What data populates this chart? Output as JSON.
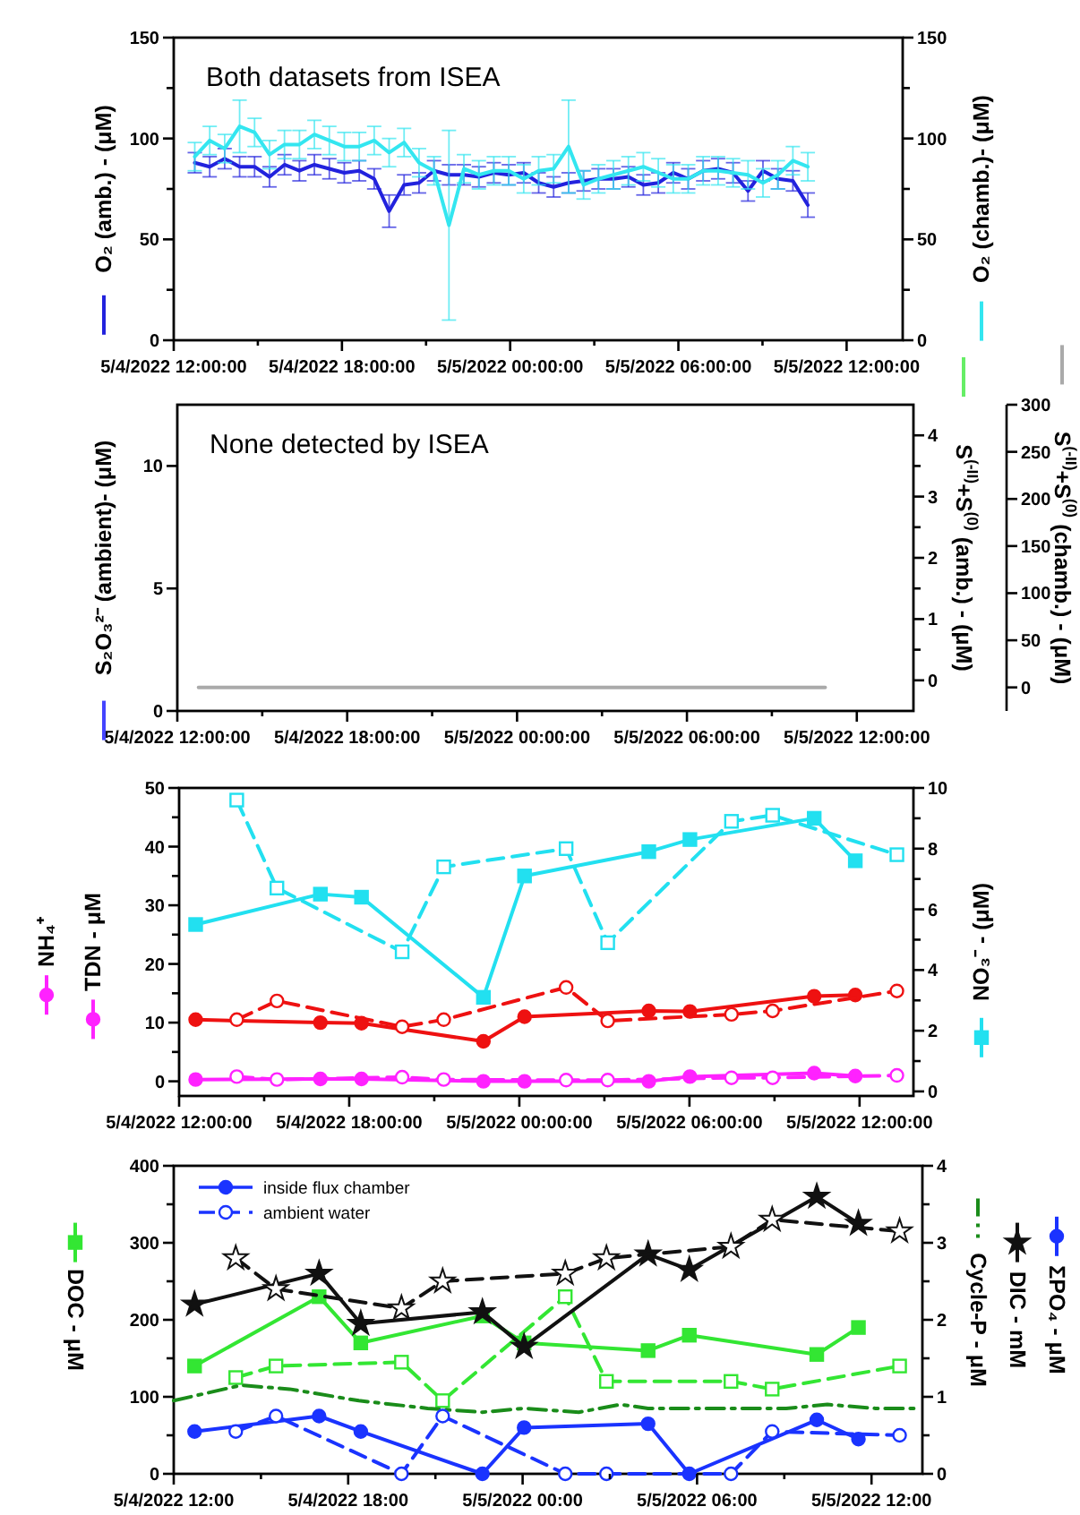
{
  "chart_data": [
    {
      "type": "line",
      "ylabel": "O₂ (amb.) - (μM)",
      "y2label": "O₂ (chamb.)- (μM)",
      "annotations": [
        "Both datasets from ISEA"
      ],
      "xlim": [
        "2022-05-04T12:00",
        "2022-05-05T14:00"
      ],
      "xticks": [
        {
          "value": "2022-05-04T12:00",
          "label": "5/4/2022 12:00:00"
        },
        {
          "value": "2022-05-04T15:00",
          "label": null
        },
        {
          "value": "2022-05-04T18:00",
          "label": "5/4/2022 18:00:00"
        },
        {
          "value": "2022-05-04T21:00",
          "label": null
        },
        {
          "value": "2022-05-05T00:00",
          "label": "5/5/2022 00:00:00"
        },
        {
          "value": "2022-05-05T03:00",
          "label": null
        },
        {
          "value": "2022-05-05T06:00",
          "label": "5/5/2022 06:00:00"
        },
        {
          "value": "2022-05-05T09:00",
          "label": null
        },
        {
          "value": "2022-05-05T12:00",
          "label": "5/5/2022 12:00:00"
        }
      ],
      "ylim": [
        0,
        150
      ],
      "yticks": [
        0,
        {
          "value": 25,
          "label": null
        },
        50,
        {
          "value": 75,
          "label": null
        },
        100,
        {
          "value": 125,
          "label": null
        },
        150
      ],
      "y2lim": [
        0,
        150
      ],
      "y2ticks": [
        0,
        {
          "value": 25,
          "label": null
        },
        50,
        {
          "value": 75,
          "label": null
        },
        100,
        {
          "value": 125,
          "label": null
        },
        150
      ],
      "x": [
        "2022-05-04T12:45",
        "2022-05-04T13:17",
        "2022-05-04T13:49",
        "2022-05-04T14:21",
        "2022-05-04T14:53",
        "2022-05-04T15:25",
        "2022-05-04T15:57",
        "2022-05-04T16:29",
        "2022-05-04T17:01",
        "2022-05-04T17:33",
        "2022-05-04T18:05",
        "2022-05-04T18:37",
        "2022-05-04T19:09",
        "2022-05-04T19:41",
        "2022-05-04T20:13",
        "2022-05-04T20:45",
        "2022-05-04T21:17",
        "2022-05-04T21:49",
        "2022-05-04T22:21",
        "2022-05-04T22:53",
        "2022-05-04T23:25",
        "2022-05-04T23:57",
        "2022-05-05T00:29",
        "2022-05-05T01:01",
        "2022-05-05T01:33",
        "2022-05-05T02:05",
        "2022-05-05T02:37",
        "2022-05-05T03:09",
        "2022-05-05T03:41",
        "2022-05-05T04:13",
        "2022-05-05T04:45",
        "2022-05-05T05:17",
        "2022-05-05T05:49",
        "2022-05-05T06:21",
        "2022-05-05T06:53",
        "2022-05-05T07:25",
        "2022-05-05T07:57",
        "2022-05-05T08:29",
        "2022-05-05T09:01",
        "2022-05-05T09:33",
        "2022-05-05T10:05",
        "2022-05-05T10:37"
      ],
      "series": [
        {
          "color": "#2222dd",
          "values": [
            88,
            86,
            90,
            86,
            86,
            81,
            87,
            84,
            87,
            85,
            83,
            84,
            80,
            64,
            77,
            78,
            84,
            82,
            82,
            81,
            83,
            82,
            83,
            78,
            76,
            78,
            79,
            80,
            80,
            81,
            77,
            78,
            83,
            80,
            84,
            85,
            83,
            74,
            84,
            80,
            79,
            67
          ],
          "errors": [
            5,
            5,
            5,
            5,
            5,
            5,
            5,
            5,
            5,
            5,
            5,
            5,
            5,
            8,
            5,
            5,
            5,
            5,
            5,
            5,
            5,
            5,
            5,
            5,
            5,
            5,
            5,
            5,
            5,
            5,
            5,
            5,
            5,
            5,
            5,
            5,
            5,
            5,
            5,
            5,
            5,
            6
          ]
        },
        {
          "color": "#33e6f0",
          "axis": "y2",
          "values": [
            91,
            99,
            95,
            106,
            103,
            92,
            97,
            97,
            102,
            99,
            96,
            96,
            99,
            93,
            98,
            88,
            84,
            57,
            85,
            82,
            84,
            84,
            80,
            84,
            85,
            96,
            77,
            80,
            82,
            84,
            86,
            83,
            80,
            80,
            84,
            84,
            83,
            82,
            78,
            82,
            89,
            86
          ],
          "errors": [
            7,
            7,
            7,
            13,
            7,
            7,
            7,
            7,
            7,
            7,
            7,
            7,
            7,
            7,
            7,
            7,
            7,
            47,
            7,
            7,
            7,
            7,
            7,
            7,
            7,
            23,
            7,
            7,
            7,
            7,
            7,
            7,
            7,
            7,
            7,
            7,
            7,
            7,
            7,
            7,
            7,
            7
          ]
        }
      ]
    },
    {
      "type": "line",
      "ylabel": "S₂O₃²⁻ (ambient)- (μM)",
      "y2label": "S$^{(-II)}$+S$^{(0)}$ (amb.) - (μM)",
      "y3label": "S$^{(-II)}$+S$^{(0)}$ (chamb.) - (μM)",
      "annotations": [
        "None detected by ISEA"
      ],
      "xlim": [
        "2022-05-04T12:00",
        "2022-05-05T14:00"
      ],
      "xticks": [
        {
          "value": "2022-05-04T12:00",
          "label": "5/4/2022 12:00:00"
        },
        {
          "value": "2022-05-04T15:00",
          "label": null
        },
        {
          "value": "2022-05-04T18:00",
          "label": "5/4/2022 18:00:00"
        },
        {
          "value": "2022-05-04T21:00",
          "label": null
        },
        {
          "value": "2022-05-05T00:00",
          "label": "5/5/2022 00:00:00"
        },
        {
          "value": "2022-05-05T03:00",
          "label": null
        },
        {
          "value": "2022-05-05T06:00",
          "label": "5/5/2022 06:00:00"
        },
        {
          "value": "2022-05-05T09:00",
          "label": null
        },
        {
          "value": "2022-05-05T12:00",
          "label": "5/5/2022 12:00:00"
        }
      ],
      "ylim": [
        0,
        12.5
      ],
      "yticks": [
        0,
        5,
        10
      ],
      "y2lim": [
        -0.5,
        4.5
      ],
      "y2ticks": [
        0,
        {
          "value": 0.5,
          "label": null
        },
        1,
        {
          "value": 1.5,
          "label": null
        },
        2,
        {
          "value": 2.5,
          "label": null
        },
        3,
        {
          "value": 3.5,
          "label": null
        },
        4
      ],
      "y3lim": [
        -25,
        300
      ],
      "y3ticks": [
        0,
        50,
        100,
        150,
        200,
        250,
        300
      ],
      "x": [
        "2022-05-04T12:45",
        "2022-05-05T10:53"
      ],
      "series": [
        {
          "color": "#4444ff",
          "values": [
            null,
            null
          ]
        },
        {
          "color": "#66ee66",
          "axis": "y2",
          "values": [
            null,
            null
          ]
        },
        {
          "color": "#aaaaaa",
          "axis": "y3",
          "values": [
            0,
            0
          ]
        }
      ]
    },
    {
      "type": "line",
      "ylabel": "TDN - μM",
      "y2label": "NO₃⁻ - (μM)",
      "annotations": [
        "NH₄⁺"
      ],
      "xlim": [
        "2022-05-04T12:00",
        "2022-05-05T13:54"
      ],
      "xticks": [
        {
          "value": "2022-05-04T12:00",
          "label": "5/4/2022 12:00:00"
        },
        {
          "value": "2022-05-04T15:00",
          "label": null
        },
        {
          "value": "2022-05-04T18:00",
          "label": "5/4/2022 18:00:00"
        },
        {
          "value": "2022-05-04T21:00",
          "label": null
        },
        {
          "value": "2022-05-05T00:00",
          "label": "5/5/2022 00:00:00"
        },
        {
          "value": "2022-05-05T03:00",
          "label": null
        },
        {
          "value": "2022-05-05T06:00",
          "label": "5/5/2022 06:00:00"
        },
        {
          "value": "2022-05-05T09:00",
          "label": null
        },
        {
          "value": "2022-05-05T12:00",
          "label": "5/5/2022 12:00:00"
        }
      ],
      "ylim": [
        -2.5,
        50
      ],
      "yticks": [
        0,
        {
          "value": 5,
          "label": null
        },
        10,
        {
          "value": 15,
          "label": null
        },
        20,
        {
          "value": 25,
          "label": null
        },
        30,
        {
          "value": 35,
          "label": null
        },
        40,
        {
          "value": 45,
          "label": null
        },
        50
      ],
      "y2lim": [
        -0.15,
        10
      ],
      "y2ticks": [
        0,
        {
          "value": 1,
          "label": null
        },
        2,
        {
          "value": 3,
          "label": null
        },
        4,
        {
          "value": 5,
          "label": null
        },
        6,
        {
          "value": 7,
          "label": null
        },
        8,
        {
          "value": 9,
          "label": null
        },
        10
      ],
      "series": [
        {
          "color": "#ff22ff",
          "marker": "circle",
          "line_style": "solid",
          "x": [
            "2022-05-04T12:35",
            "2022-05-04T16:59",
            "2022-05-04T18:26",
            "2022-05-04T22:44",
            "2022-05-05T00:11",
            "2022-05-05T04:34",
            "2022-05-05T06:01",
            "2022-05-05T10:24",
            "2022-05-05T11:51"
          ],
          "values": [
            0.3,
            0.4,
            0.4,
            0,
            0,
            0,
            0.8,
            1.4,
            0.9
          ]
        },
        {
          "color": "#ff22ff",
          "marker": "circle",
          "line_style": "dashed",
          "x": [
            "2022-05-04T14:02",
            "2022-05-04T15:27",
            "2022-05-04T19:52",
            "2022-05-04T21:20",
            "2022-05-05T01:39",
            "2022-05-05T03:07",
            "2022-05-05T07:29",
            "2022-05-05T08:56",
            "2022-05-05T13:19"
          ],
          "values": [
            0.8,
            0.3,
            0.7,
            0.3,
            0.2,
            0.2,
            0.6,
            0.6,
            1.0
          ]
        },
        {
          "color": "#ee1111",
          "marker": "circle",
          "line_style": "solid",
          "x": [
            "2022-05-04T12:35",
            "2022-05-04T16:59",
            "2022-05-04T18:26",
            "2022-05-04T22:44",
            "2022-05-05T00:11",
            "2022-05-05T04:34",
            "2022-05-05T06:01",
            "2022-05-05T10:24",
            "2022-05-05T11:51"
          ],
          "values": [
            10.5,
            10.0,
            9.9,
            6.8,
            11.0,
            12.0,
            11.9,
            14.5,
            14.7
          ]
        },
        {
          "color": "#ee1111",
          "marker": "circle",
          "line_style": "dashed",
          "x": [
            "2022-05-04T14:02",
            "2022-05-04T15:27",
            "2022-05-04T19:52",
            "2022-05-04T21:20",
            "2022-05-05T01:39",
            "2022-05-05T03:07",
            "2022-05-05T07:29",
            "2022-05-05T08:56",
            "2022-05-05T13:19"
          ],
          "values": [
            10.5,
            13.7,
            9.3,
            10.5,
            16.0,
            10.3,
            11.4,
            12.0,
            15.4
          ]
        },
        {
          "color": "#22e0f0",
          "axis": "y2",
          "marker": "square",
          "line_style": "solid",
          "x": [
            "2022-05-04T12:35",
            "2022-05-04T16:59",
            "2022-05-04T18:26",
            "2022-05-04T22:44",
            "2022-05-05T00:11",
            "2022-05-05T04:34",
            "2022-05-05T06:01",
            "2022-05-05T10:24",
            "2022-05-05T11:51"
          ],
          "values": [
            5.5,
            6.5,
            6.4,
            3.1,
            7.1,
            7.9,
            8.3,
            9.0,
            7.6
          ]
        },
        {
          "color": "#22e0f0",
          "axis": "y2",
          "marker": "square",
          "line_style": "dashed",
          "x": [
            "2022-05-04T14:02",
            "2022-05-04T15:27",
            "2022-05-04T19:52",
            "2022-05-04T21:20",
            "2022-05-05T01:39",
            "2022-05-05T03:07",
            "2022-05-05T07:29",
            "2022-05-05T08:56",
            "2022-05-05T13:19"
          ],
          "values": [
            9.6,
            6.7,
            4.6,
            7.4,
            8.0,
            4.9,
            8.9,
            9.1,
            7.8
          ]
        }
      ]
    },
    {
      "type": "line",
      "ylabel": "DOC - μM",
      "y2label": "Cycle-P - μM",
      "annotations": [
        "DIC - mM",
        "ΣPO₄ - μM"
      ],
      "legend": "top left",
      "xlim": [
        "2022-05-04T12:00",
        "2022-05-05T13:45"
      ],
      "xticks": [
        {
          "value": "2022-05-04T12:00",
          "label": "5/4/2022 12:00"
        },
        {
          "value": "2022-05-04T15:00",
          "label": null
        },
        {
          "value": "2022-05-04T18:00",
          "label": "5/4/2022 18:00"
        },
        {
          "value": "2022-05-04T21:00",
          "label": null
        },
        {
          "value": "2022-05-05T00:00",
          "label": "5/5/2022 00:00"
        },
        {
          "value": "2022-05-05T03:00",
          "label": null
        },
        {
          "value": "2022-05-05T06:00",
          "label": "5/5/2022 06:00"
        },
        {
          "value": "2022-05-05T09:00",
          "label": null
        },
        {
          "value": "2022-05-05T12:00",
          "label": "5/5/2022 12:00"
        }
      ],
      "ylim": [
        0,
        400
      ],
      "yticks": [
        0,
        {
          "value": 50,
          "label": null
        },
        100,
        {
          "value": 150,
          "label": null
        },
        200,
        {
          "value": 250,
          "label": null
        },
        300,
        {
          "value": 350,
          "label": null
        },
        400
      ],
      "y2lim": [
        0,
        4
      ],
      "y2ticks": [
        0,
        {
          "value": 0.5,
          "label": null
        },
        1,
        {
          "value": 1.5,
          "label": null
        },
        2,
        {
          "value": 2.5,
          "label": null
        },
        3,
        {
          "value": 3.5,
          "label": null
        },
        4
      ],
      "series": [
        {
          "color": "#33e633",
          "marker": "square",
          "line_style": "solid",
          "x": [
            "2022-05-04T12:43",
            "2022-05-04T17:00",
            "2022-05-04T18:26",
            "2022-05-04T22:37",
            "2022-05-05T00:03",
            "2022-05-05T04:19",
            "2022-05-05T05:44",
            "2022-05-05T10:07",
            "2022-05-05T11:33"
          ],
          "values": [
            140,
            230,
            170,
            205,
            170,
            160,
            180,
            155,
            190
          ]
        },
        {
          "color": "#33e633",
          "marker": "square",
          "line_style": "dashed",
          "x": [
            "2022-05-04T14:08",
            "2022-05-04T15:31",
            "2022-05-04T19:50",
            "2022-05-04T21:15",
            "2022-05-05T01:28",
            "2022-05-05T02:53",
            "2022-05-05T07:10",
            "2022-05-05T08:35",
            "2022-05-05T12:58"
          ],
          "values": [
            125,
            140,
            145,
            95,
            230,
            120,
            120,
            110,
            140
          ]
        },
        {
          "color": "#1a8c1a",
          "axis": "y2",
          "marker": "none",
          "line_style": "dashdot",
          "x": [
            "2022-05-04T12:00",
            "2022-05-04T14:19",
            "2022-05-04T15:59",
            "2022-05-04T18:22",
            "2022-05-04T20:44",
            "2022-05-04T22:37",
            "2022-05-05T00:03",
            "2022-05-05T01:56",
            "2022-05-05T03:22",
            "2022-05-05T04:19",
            "2022-05-05T06:13",
            "2022-05-05T07:38",
            "2022-05-05T09:04",
            "2022-05-05T10:29",
            "2022-05-05T12:08",
            "2022-05-05T13:34"
          ],
          "values": [
            0.95,
            1.15,
            1.1,
            0.95,
            0.85,
            0.8,
            0.85,
            0.8,
            0.9,
            0.85,
            0.85,
            0.85,
            0.85,
            0.9,
            0.85,
            0.85
          ]
        },
        {
          "color": "#111111",
          "axis": "y2",
          "marker": "star",
          "line_style": "solid",
          "x": [
            "2022-05-04T12:43",
            "2022-05-04T17:00",
            "2022-05-04T18:26",
            "2022-05-04T22:37",
            "2022-05-05T00:03",
            "2022-05-05T04:19",
            "2022-05-05T05:44",
            "2022-05-05T10:07",
            "2022-05-05T11:33"
          ],
          "values": [
            2.2,
            2.6,
            1.95,
            2.1,
            1.65,
            2.85,
            2.65,
            3.6,
            3.25
          ]
        },
        {
          "color": "#111111",
          "axis": "y2",
          "marker": "star",
          "line_style": "dashed",
          "x": [
            "2022-05-04T14:08",
            "2022-05-04T15:31",
            "2022-05-04T19:50",
            "2022-05-04T21:15",
            "2022-05-05T01:28",
            "2022-05-05T02:53",
            "2022-05-05T07:10",
            "2022-05-05T08:35",
            "2022-05-05T12:58"
          ],
          "values": [
            2.8,
            2.4,
            2.15,
            2.5,
            2.6,
            2.8,
            2.95,
            3.3,
            3.15
          ]
        },
        {
          "name": "inside flux chamber",
          "color": "#1a33ff",
          "axis": "y2",
          "marker": "circle",
          "line_style": "solid",
          "x": [
            "2022-05-04T12:43",
            "2022-05-04T17:00",
            "2022-05-04T18:26",
            "2022-05-04T22:37",
            "2022-05-05T00:03",
            "2022-05-05T04:19",
            "2022-05-05T05:44",
            "2022-05-05T10:07",
            "2022-05-05T11:33"
          ],
          "values": [
            0.55,
            0.75,
            0.55,
            0,
            0.6,
            0.65,
            0,
            0.7,
            0.45
          ]
        },
        {
          "name": "ambient water",
          "color": "#1a33ff",
          "axis": "y2",
          "marker": "circle",
          "line_style": "dashed",
          "x": [
            "2022-05-04T14:08",
            "2022-05-04T15:31",
            "2022-05-04T19:50",
            "2022-05-04T21:15",
            "2022-05-05T01:28",
            "2022-05-05T02:53",
            "2022-05-05T07:10",
            "2022-05-05T08:35",
            "2022-05-05T12:58"
          ],
          "values": [
            0.55,
            0.75,
            0,
            0.75,
            0,
            0,
            0,
            0.55,
            0.5
          ]
        }
      ]
    }
  ]
}
